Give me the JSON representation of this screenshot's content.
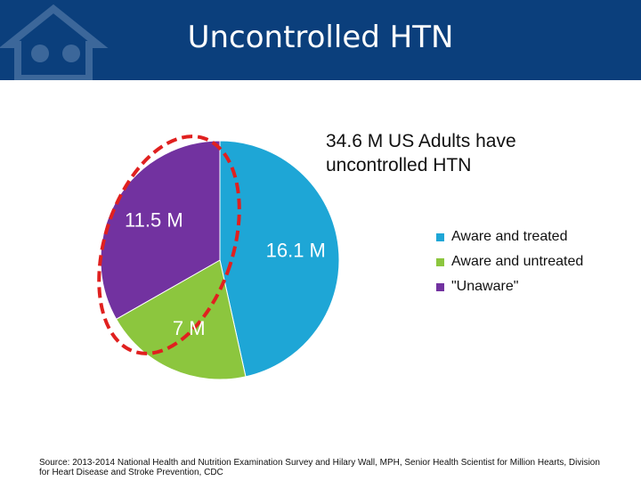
{
  "header": {
    "title": "Uncontrolled HTN"
  },
  "chart_data": {
    "type": "pie",
    "title": "34.6 M US Adults have uncontrolled HTN",
    "categories": [
      "Aware and treated",
      "Aware and untreated",
      "\"Unaware\""
    ],
    "values": [
      16.1,
      7,
      11.5
    ],
    "value_labels": [
      "16.1 M",
      "7 M",
      "11.5 M"
    ],
    "colors": [
      "#1ea6d6",
      "#8cc63e",
      "#7232a0"
    ]
  },
  "source": "Source:  2013-2014 National Health and Nutrition Examination Survey and Hilary Wall, MPH, Senior Health Scientist for Million Hearts,  Division for Heart Disease and Stroke Prevention, CDC"
}
